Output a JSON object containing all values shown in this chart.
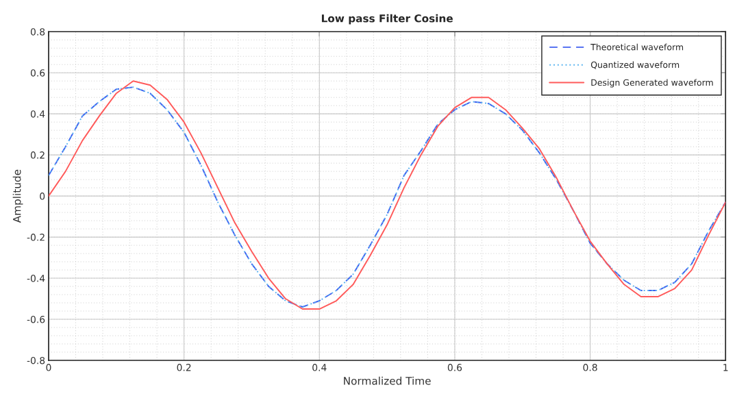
{
  "chart_data": {
    "type": "line",
    "title": "Low pass Filter Cosine",
    "xlabel": "Normalized Time",
    "ylabel": "Amplitude",
    "x": [
      0,
      0.025,
      0.05,
      0.075,
      0.1,
      0.125,
      0.15,
      0.175,
      0.2,
      0.225,
      0.25,
      0.275,
      0.3,
      0.325,
      0.35,
      0.375,
      0.4,
      0.425,
      0.45,
      0.475,
      0.5,
      0.525,
      0.55,
      0.575,
      0.6,
      0.625,
      0.65,
      0.675,
      0.7,
      0.725,
      0.75,
      0.775,
      0.8,
      0.825,
      0.85,
      0.875,
      0.9,
      0.925,
      0.95,
      0.975,
      1.0
    ],
    "series": [
      {
        "name": "Theoretical waveform",
        "color": "#4060f0",
        "line_style": "dashed",
        "values": [
          0.1,
          0.24,
          0.39,
          0.46,
          0.52,
          0.53,
          0.5,
          0.42,
          0.31,
          0.15,
          -0.03,
          -0.19,
          -0.33,
          -0.44,
          -0.51,
          -0.54,
          -0.51,
          -0.46,
          -0.38,
          -0.24,
          -0.09,
          0.1,
          0.22,
          0.35,
          0.42,
          0.46,
          0.45,
          0.4,
          0.32,
          0.21,
          0.08,
          -0.07,
          -0.23,
          -0.33,
          -0.41,
          -0.46,
          -0.46,
          -0.42,
          -0.33,
          -0.17,
          -0.03
        ]
      },
      {
        "name": "Quantized waveform",
        "color": "#5ab4f0",
        "line_style": "dotted",
        "values": [
          0.1,
          0.24,
          0.39,
          0.46,
          0.52,
          0.53,
          0.5,
          0.42,
          0.31,
          0.15,
          -0.03,
          -0.19,
          -0.33,
          -0.44,
          -0.51,
          -0.54,
          -0.51,
          -0.46,
          -0.38,
          -0.24,
          -0.09,
          0.1,
          0.22,
          0.35,
          0.42,
          0.46,
          0.45,
          0.4,
          0.32,
          0.21,
          0.08,
          -0.07,
          -0.23,
          -0.33,
          -0.41,
          -0.46,
          -0.46,
          -0.42,
          -0.33,
          -0.17,
          -0.03
        ]
      },
      {
        "name": "Design Generated waveform",
        "color": "#ff5a5a",
        "line_style": "solid",
        "values": [
          0.0,
          0.12,
          0.27,
          0.39,
          0.5,
          0.56,
          0.54,
          0.47,
          0.36,
          0.21,
          0.04,
          -0.13,
          -0.27,
          -0.4,
          -0.5,
          -0.55,
          -0.55,
          -0.51,
          -0.43,
          -0.29,
          -0.14,
          0.04,
          0.2,
          0.34,
          0.43,
          0.48,
          0.48,
          0.42,
          0.33,
          0.23,
          0.09,
          -0.07,
          -0.22,
          -0.33,
          -0.43,
          -0.49,
          -0.49,
          -0.45,
          -0.36,
          -0.19,
          -0.03
        ]
      }
    ],
    "xlim": [
      0,
      1
    ],
    "ylim": [
      -0.8,
      0.8
    ],
    "xticks": [
      0,
      0.2,
      0.4,
      0.6,
      0.8,
      1
    ],
    "yticks": [
      -0.8,
      -0.6,
      -0.4,
      -0.2,
      0,
      0.2,
      0.4,
      0.6,
      0.8
    ],
    "grid": true,
    "legend": "top right",
    "marker": "none"
  }
}
